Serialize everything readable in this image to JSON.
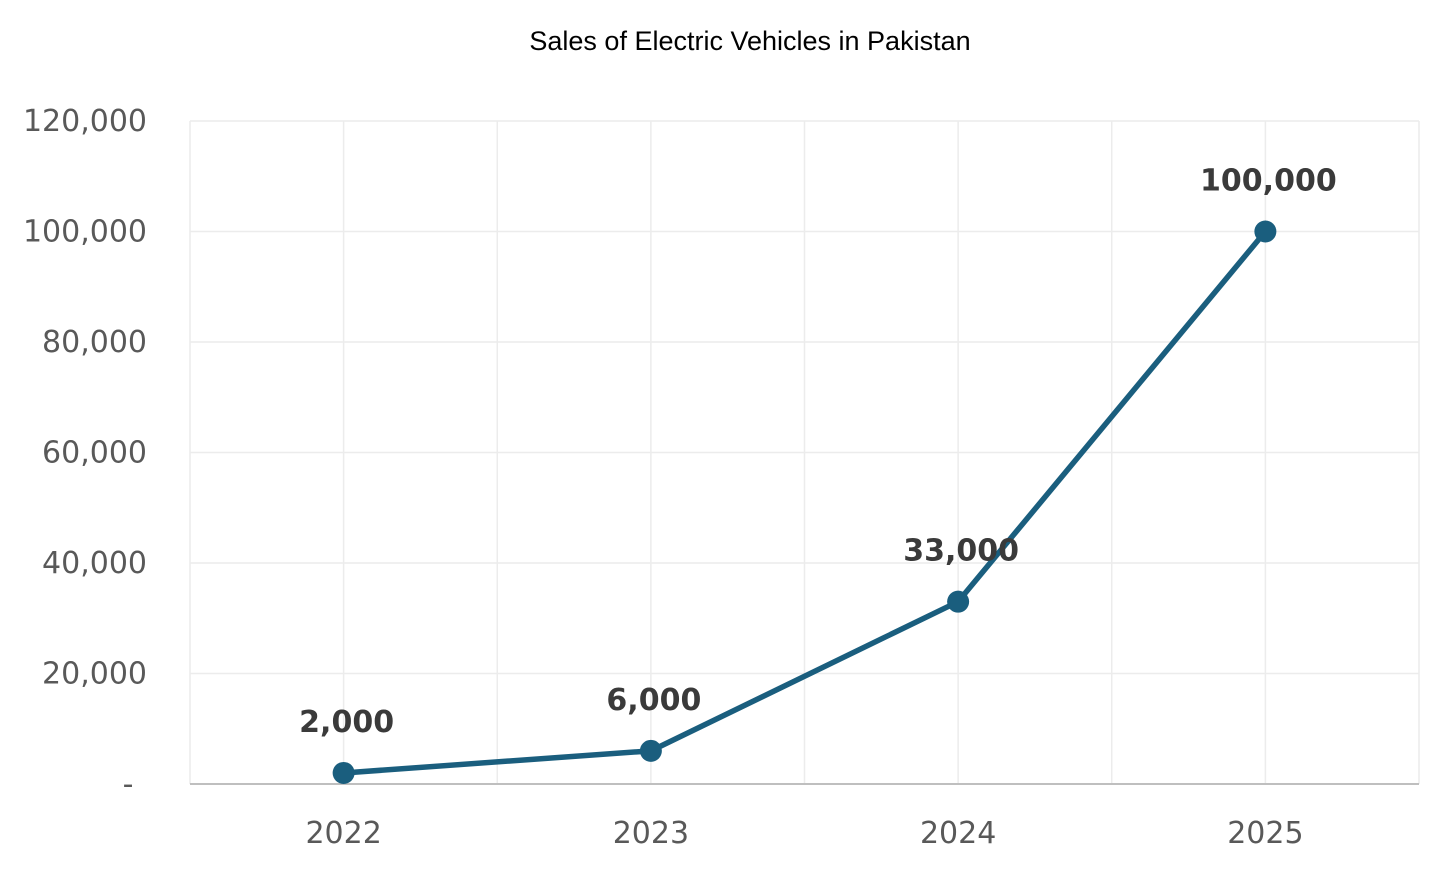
{
  "chart_data": {
    "type": "line",
    "title": "Sales of Electric Vehicles in Pakistan",
    "xlabel": "",
    "ylabel": "",
    "categories": [
      "2022",
      "2023",
      "2024",
      "2025"
    ],
    "series": [
      {
        "values": [
          2000,
          6000,
          33000,
          100000
        ]
      }
    ],
    "data_labels": [
      "2,000",
      "6,000",
      "33,000",
      "100,000"
    ],
    "y_ticks": [
      0,
      20000,
      40000,
      60000,
      80000,
      100000,
      120000
    ],
    "y_tick_labels": [
      "-",
      "20,000",
      "40,000",
      "60,000",
      "80,000",
      "100,000",
      "120,000"
    ],
    "ylim": [
      0,
      120000
    ],
    "grid": true,
    "legend": "none",
    "line_color": "#1a5e7e"
  }
}
